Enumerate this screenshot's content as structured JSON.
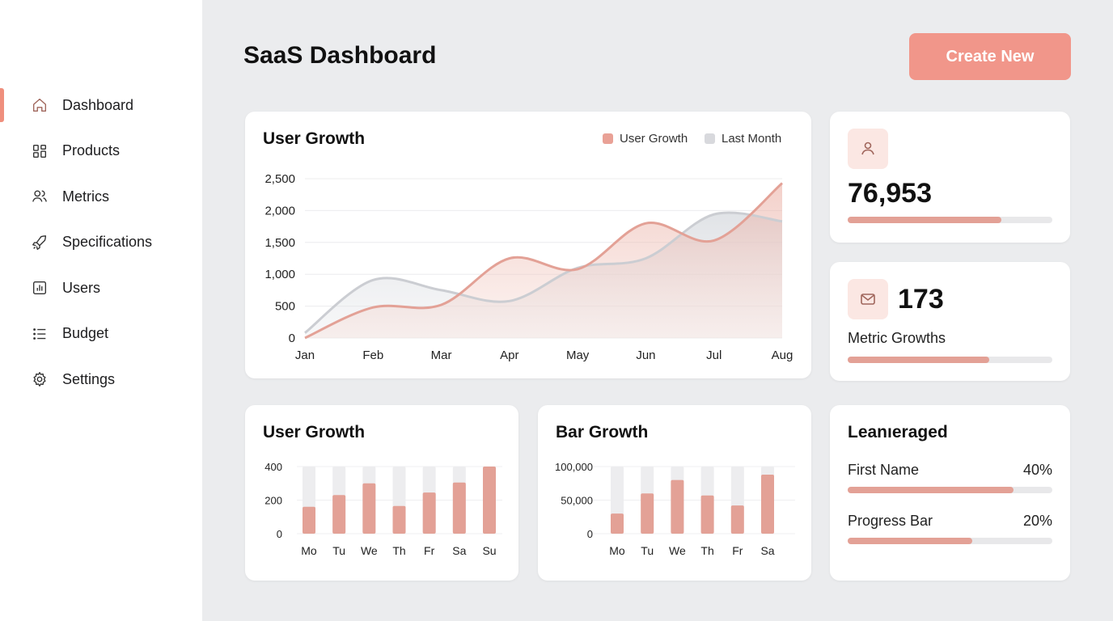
{
  "sidebar": {
    "items": [
      {
        "label": "Dashboard",
        "icon": "home-icon",
        "active": true
      },
      {
        "label": "Products",
        "icon": "grid-icon"
      },
      {
        "label": "Metrics",
        "icon": "users-icon"
      },
      {
        "label": "Specifications",
        "icon": "rocket-icon"
      },
      {
        "label": "Users",
        "icon": "bar-chart-icon"
      },
      {
        "label": "Budget",
        "icon": "list-icon"
      },
      {
        "label": "Settings",
        "icon": "gear-icon"
      }
    ]
  },
  "header": {
    "title": "SaaS Dashboard",
    "create_label": "Create New"
  },
  "colors": {
    "accent": "#f1968a",
    "series_primary": "#e3a196",
    "series_secondary": "#d3d5da",
    "track": "#e8e8ea"
  },
  "chart_data": [
    {
      "type": "area",
      "title": "User Growth",
      "categories": [
        "Jan",
        "Feb",
        "Mar",
        "Apr",
        "May",
        "Jun",
        "Jul",
        "Aug"
      ],
      "series": [
        {
          "name": "User Growth",
          "values": [
            0,
            480,
            520,
            1250,
            1080,
            1800,
            1530,
            2430
          ]
        },
        {
          "name": "Last Month",
          "values": [
            80,
            910,
            750,
            580,
            1100,
            1250,
            1940,
            1830
          ]
        }
      ],
      "yticks": [
        "0",
        "500",
        "1,000",
        "1,500",
        "2,000",
        "2,500"
      ],
      "ylim": [
        0,
        2500
      ],
      "grid": true,
      "legend": "top-right"
    },
    {
      "type": "bar",
      "title": "User Growth",
      "categories": [
        "Mo",
        "Tu",
        "We",
        "Th",
        "Fr",
        "Sa",
        "Su"
      ],
      "values": [
        160,
        230,
        300,
        165,
        245,
        305,
        400
      ],
      "yticks": [
        "0",
        "200",
        "400"
      ],
      "ylim": [
        0,
        400
      ]
    },
    {
      "type": "bar",
      "title": "Bar Growth",
      "categories": [
        "Mo",
        "Tu",
        "We",
        "Th",
        "Fr",
        "Sa"
      ],
      "values": [
        30000,
        60000,
        80000,
        57000,
        42000,
        88000
      ],
      "yticks": [
        "0",
        "50,000",
        "100,000"
      ],
      "ylim": [
        0,
        100000
      ]
    }
  ],
  "stats": {
    "users": {
      "icon": "user-icon",
      "value": "76,953",
      "progress": 0.75
    },
    "metric": {
      "icon": "mail-icon",
      "value": "173",
      "label": "Metric Growths",
      "progress": 0.69
    }
  },
  "leveraged": {
    "title": "Leanıeraged",
    "rows": [
      {
        "label": "First Name",
        "percent": "40%",
        "progress": 0.81
      },
      {
        "label": "Progress Bar",
        "percent": "20%",
        "progress": 0.61
      }
    ]
  }
}
